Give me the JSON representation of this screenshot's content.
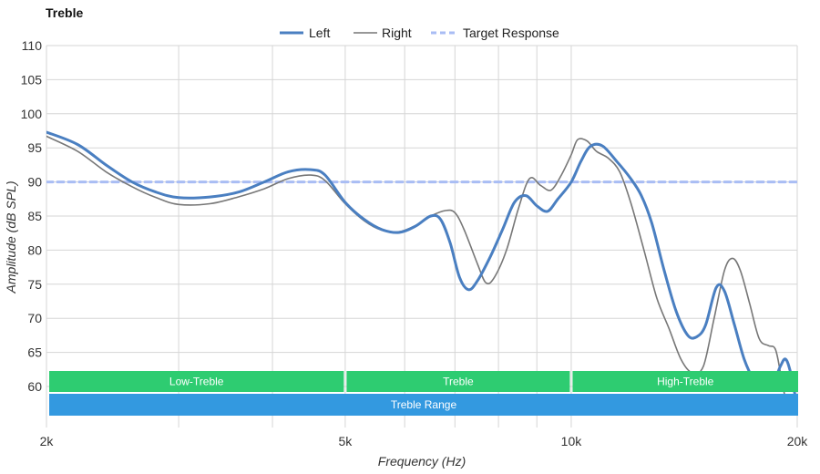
{
  "chart_data": {
    "type": "line",
    "title": "Treble",
    "xlabel": "Frequency (Hz)",
    "ylabel": "Amplitude (dB SPL)",
    "x_scale": "log",
    "xlim": [
      2000,
      20000
    ],
    "ylim": [
      54,
      110
    ],
    "grid": true,
    "legend_position": "top-center",
    "x_ticks": [
      {
        "value": 2000,
        "label": "2k"
      },
      {
        "value": 5000,
        "label": "5k"
      },
      {
        "value": 10000,
        "label": "10k"
      },
      {
        "value": 20000,
        "label": "20k"
      }
    ],
    "x_minor_gridlines": [
      3000,
      4000,
      6000,
      7000,
      8000,
      9000
    ],
    "y_ticks": [
      60,
      65,
      70,
      75,
      80,
      85,
      90,
      95,
      100,
      105,
      110
    ],
    "series": [
      {
        "name": "Left",
        "color": "#4a7fc1",
        "style": "solid-thick",
        "points": [
          [
            2000,
            97.3
          ],
          [
            2200,
            95.5
          ],
          [
            2400,
            92.5
          ],
          [
            2600,
            90.0
          ],
          [
            2800,
            88.5
          ],
          [
            3000,
            87.7
          ],
          [
            3300,
            87.8
          ],
          [
            3600,
            88.5
          ],
          [
            3900,
            90.0
          ],
          [
            4200,
            91.5
          ],
          [
            4500,
            91.8
          ],
          [
            4700,
            91.0
          ],
          [
            5000,
            87.0
          ],
          [
            5300,
            84.5
          ],
          [
            5600,
            83.0
          ],
          [
            5900,
            82.6
          ],
          [
            6200,
            83.5
          ],
          [
            6500,
            85.0
          ],
          [
            6700,
            84.5
          ],
          [
            6900,
            81.0
          ],
          [
            7100,
            76.0
          ],
          [
            7300,
            74.2
          ],
          [
            7500,
            75.5
          ],
          [
            7800,
            79.0
          ],
          [
            8100,
            83.0
          ],
          [
            8400,
            87.0
          ],
          [
            8700,
            88.0
          ],
          [
            9000,
            86.5
          ],
          [
            9300,
            85.7
          ],
          [
            9600,
            87.5
          ],
          [
            10000,
            90.0
          ],
          [
            10300,
            93.0
          ],
          [
            10600,
            95.2
          ],
          [
            11000,
            95.3
          ],
          [
            11500,
            93.0
          ],
          [
            12000,
            90.5
          ],
          [
            12400,
            88.0
          ],
          [
            12800,
            84.0
          ],
          [
            13300,
            77.0
          ],
          [
            13800,
            71.0
          ],
          [
            14300,
            67.5
          ],
          [
            14700,
            67.3
          ],
          [
            15100,
            69.0
          ],
          [
            15600,
            74.5
          ],
          [
            16000,
            74.0
          ],
          [
            16500,
            69.0
          ],
          [
            17000,
            64.0
          ],
          [
            17500,
            61.0
          ],
          [
            18000,
            59.5
          ],
          [
            18500,
            60.0
          ],
          [
            19000,
            63.0
          ],
          [
            19300,
            64.0
          ],
          [
            19600,
            62.0
          ],
          [
            20000,
            57.0
          ]
        ]
      },
      {
        "name": "Right",
        "color": "#777777",
        "style": "solid-thin",
        "points": [
          [
            2000,
            96.7
          ],
          [
            2200,
            94.5
          ],
          [
            2400,
            91.5
          ],
          [
            2600,
            89.3
          ],
          [
            2800,
            87.7
          ],
          [
            3000,
            86.7
          ],
          [
            3300,
            86.8
          ],
          [
            3600,
            87.8
          ],
          [
            3900,
            89.0
          ],
          [
            4200,
            90.5
          ],
          [
            4500,
            91.0
          ],
          [
            4700,
            90.2
          ],
          [
            5000,
            86.8
          ],
          [
            5300,
            84.3
          ],
          [
            5600,
            82.9
          ],
          [
            5900,
            82.7
          ],
          [
            6200,
            83.6
          ],
          [
            6500,
            85.0
          ],
          [
            6800,
            85.8
          ],
          [
            7000,
            85.5
          ],
          [
            7200,
            83.0
          ],
          [
            7500,
            78.0
          ],
          [
            7700,
            75.2
          ],
          [
            7900,
            76.0
          ],
          [
            8200,
            80.0
          ],
          [
            8500,
            86.0
          ],
          [
            8800,
            90.5
          ],
          [
            9100,
            89.5
          ],
          [
            9400,
            88.8
          ],
          [
            9700,
            91.0
          ],
          [
            10000,
            94.0
          ],
          [
            10200,
            96.2
          ],
          [
            10500,
            96.0
          ],
          [
            10800,
            94.5
          ],
          [
            11200,
            93.5
          ],
          [
            11600,
            91.5
          ],
          [
            12000,
            87.0
          ],
          [
            12500,
            80.0
          ],
          [
            13000,
            73.0
          ],
          [
            13500,
            68.5
          ],
          [
            14000,
            64.0
          ],
          [
            14500,
            62.0
          ],
          [
            15000,
            63.0
          ],
          [
            15500,
            70.0
          ],
          [
            16000,
            77.0
          ],
          [
            16400,
            78.8
          ],
          [
            16800,
            77.0
          ],
          [
            17300,
            72.0
          ],
          [
            17800,
            67.0
          ],
          [
            18300,
            66.0
          ],
          [
            18700,
            65.5
          ],
          [
            19000,
            62.0
          ],
          [
            19300,
            58.0
          ],
          [
            19600,
            55.0
          ],
          [
            20000,
            55.5
          ]
        ]
      },
      {
        "name": "Target Response",
        "color": "#a9bdf4",
        "style": "dashed",
        "points": [
          [
            2000,
            90
          ],
          [
            20000,
            90
          ]
        ]
      }
    ],
    "bands": [
      {
        "label": "Low-Treble",
        "from": 2000,
        "to": 5000,
        "color": "#2ecc71",
        "row": 1
      },
      {
        "label": "Treble",
        "from": 5000,
        "to": 10000,
        "color": "#2ecc71",
        "row": 1
      },
      {
        "label": "High-Treble",
        "from": 10000,
        "to": 20000,
        "color": "#2ecc71",
        "row": 1
      },
      {
        "label": "Treble Range",
        "from": 2000,
        "to": 20000,
        "color": "#3399e0",
        "row": 2
      }
    ]
  }
}
